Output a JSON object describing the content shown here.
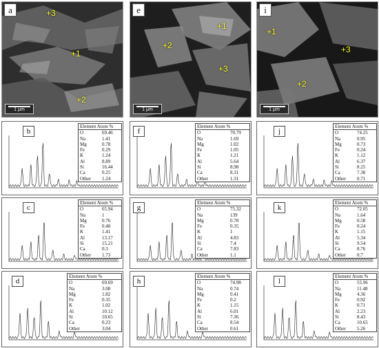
{
  "sem_panels": [
    {
      "letter": "a",
      "scale": "1 μm",
      "points": [
        "+3",
        "+1",
        "+2"
      ]
    },
    {
      "letter": "e",
      "scale": "1 μm",
      "points": [
        "+1",
        "+2",
        "+3"
      ]
    },
    {
      "letter": "i",
      "scale": "1 μm",
      "points": [
        "+1",
        "+3",
        "+2"
      ]
    }
  ],
  "eds_panels": [
    {
      "letter": "b",
      "header": "Element  Atom %",
      "rows": [
        [
          "O",
          "69.46"
        ],
        [
          "Na",
          "1.41"
        ],
        [
          "Mg",
          "0.78"
        ],
        [
          "Fe",
          "0.29"
        ],
        [
          "K",
          "1.24"
        ],
        [
          "Al",
          "8.89"
        ],
        [
          "Si",
          "16.44"
        ],
        [
          "Ca",
          "0.25"
        ],
        [
          "Other",
          "1.24"
        ]
      ]
    },
    {
      "letter": "c",
      "header": "Element  Atom %",
      "rows": [
        [
          "O",
          "65.94"
        ],
        [
          "Na",
          "1"
        ],
        [
          "Mg",
          "0.76"
        ],
        [
          "Fe",
          "0.48"
        ],
        [
          "K",
          "1.41"
        ],
        [
          "Al",
          "13.17"
        ],
        [
          "Si",
          "15.21"
        ],
        [
          "Ca",
          "0.3"
        ],
        [
          "Other",
          "1.73"
        ]
      ]
    },
    {
      "letter": "d",
      "header": "Element    Atom %",
      "rows": [
        [
          "O",
          "69.69"
        ],
        [
          "Na",
          "3.08"
        ],
        [
          "Mg",
          "1.82"
        ],
        [
          "Fe",
          "0.35"
        ],
        [
          "K",
          "1.02"
        ],
        [
          "Al",
          "10.12"
        ],
        [
          "Si",
          "10.65"
        ],
        [
          "Ca",
          "0.23"
        ],
        [
          "Other",
          "3.04"
        ]
      ]
    },
    {
      "letter": "f",
      "header": "Element  Atom %",
      "rows": [
        [
          "O",
          "70.79"
        ],
        [
          "Na",
          "1.69"
        ],
        [
          "Mg",
          "1.02"
        ],
        [
          "Fe",
          "1.05"
        ],
        [
          "K",
          "1.21"
        ],
        [
          "Al",
          "5.64"
        ],
        [
          "Si",
          "8.98"
        ],
        [
          "Ca",
          "8.31"
        ],
        [
          "Other",
          "1.31"
        ]
      ]
    },
    {
      "letter": "g",
      "header": "Element  Atom %",
      "rows": [
        [
          "O",
          "75.32"
        ],
        [
          "Na",
          "139"
        ],
        [
          "Mg",
          "0.78"
        ],
        [
          "Fe",
          "0.35"
        ],
        [
          "K",
          "1"
        ],
        [
          "Al",
          "4.83"
        ],
        [
          "Si",
          "7.4"
        ],
        [
          "Ca",
          "7.83"
        ],
        [
          "Other",
          "1.1"
        ]
      ]
    },
    {
      "letter": "h",
      "header": "Element   Atom %",
      "rows": [
        [
          "O",
          "74.98"
        ],
        [
          "Na",
          "0.74"
        ],
        [
          "Mg",
          "0.41"
        ],
        [
          "Fe",
          "0.2"
        ],
        [
          "K",
          "1.15"
        ],
        [
          "Al",
          "6.01"
        ],
        [
          "Si",
          "7.36"
        ],
        [
          "Ca",
          "8.54"
        ],
        [
          "Other",
          "0.61"
        ]
      ]
    },
    {
      "letter": "j",
      "header": "Element  Atom %",
      "rows": [
        [
          "O",
          "74.25"
        ],
        [
          "Na",
          "0.95"
        ],
        [
          "Mg",
          "0.73"
        ],
        [
          "Fe",
          "0.24"
        ],
        [
          "K",
          "1.12"
        ],
        [
          "Al",
          "6.37"
        ],
        [
          "Si",
          "8.25"
        ],
        [
          "Ca",
          "7.38"
        ],
        [
          "Other",
          "0.71"
        ]
      ]
    },
    {
      "letter": "k",
      "header": "Element  Atom %",
      "rows": [
        [
          "O",
          "72.05"
        ],
        [
          "Na",
          "1.64"
        ],
        [
          "Mg",
          "0.58"
        ],
        [
          "Fe",
          "0.24"
        ],
        [
          "K",
          "1.15"
        ],
        [
          "Al",
          "5.34"
        ],
        [
          "Si",
          "9.54"
        ],
        [
          "Ca",
          "8.76"
        ],
        [
          "Other",
          "0.7"
        ]
      ]
    },
    {
      "letter": "l",
      "header": "Element  Atom %",
      "rows": [
        [
          "O",
          "55.96"
        ],
        [
          "Na",
          "11.48"
        ],
        [
          "Mg",
          "4.36"
        ],
        [
          "Fe",
          "0.92"
        ],
        [
          "K",
          "0.71"
        ],
        [
          "Al",
          "2.23"
        ],
        [
          "Si",
          "8.43"
        ],
        [
          "Ca",
          "10.65"
        ],
        [
          "Other",
          "5.26"
        ]
      ]
    }
  ],
  "colors": {
    "point_label": "#ffff22",
    "spectrum_line": "#222222"
  }
}
